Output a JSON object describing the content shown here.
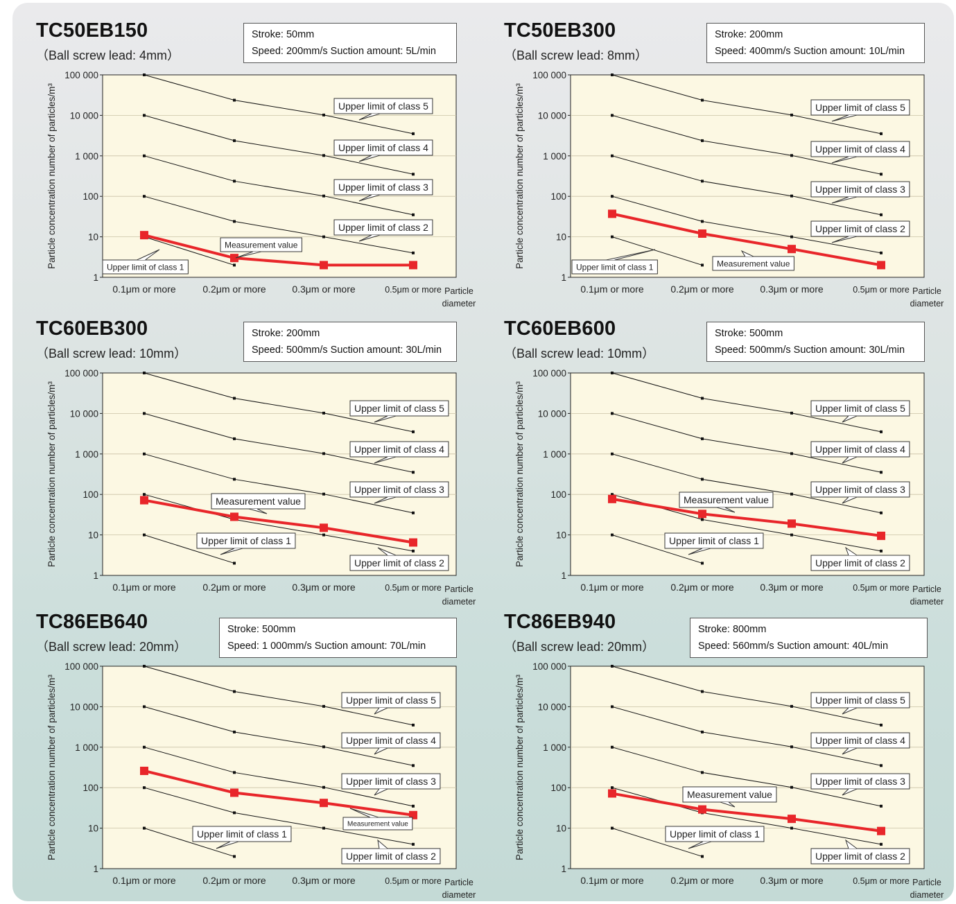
{
  "chart_data": [
    {
      "type": "line",
      "model": "TC50EB150",
      "lead_label": "（Ball screw lead: 4mm）",
      "spec_lines": [
        "Stroke: 50mm",
        "Speed: 200mm/s  Suction amount: 5L/min"
      ],
      "ylabel": "Particle concentration number of particles/m³",
      "xlabel": "Particle diameter",
      "yscale": "log",
      "ylim": [
        1,
        100000
      ],
      "y_ticks": [
        "1",
        "10",
        "100",
        "1 000",
        "10 000",
        "100 000"
      ],
      "categories": [
        "0.1μm or more",
        "0.2μm or more",
        "0.3μm or more",
        "0.5μm or more"
      ],
      "class_limits": [
        {
          "name": "Upper limit of class 1",
          "values": [
            10,
            2,
            null,
            null
          ]
        },
        {
          "name": "Upper limit of class 2",
          "values": [
            100,
            24,
            10,
            4
          ]
        },
        {
          "name": "Upper limit of class 3",
          "values": [
            1000,
            237,
            102,
            35
          ]
        },
        {
          "name": "Upper limit of class 4",
          "values": [
            10000,
            2370,
            1020,
            352
          ]
        },
        {
          "name": "Upper limit of class 5",
          "values": [
            100000,
            23700,
            10200,
            3520
          ]
        }
      ],
      "measurement": {
        "name": "Measurement value",
        "values": [
          11,
          3,
          2,
          2
        ]
      }
    },
    {
      "type": "line",
      "model": "TC50EB300",
      "lead_label": "（Ball screw lead: 8mm）",
      "spec_lines": [
        "Stroke: 200mm",
        "Speed: 400mm/s  Suction amount: 10L/min"
      ],
      "ylabel": "Particle concentration number of particles/m³",
      "xlabel": "Particle diameter",
      "yscale": "log",
      "ylim": [
        1,
        100000
      ],
      "y_ticks": [
        "1",
        "10",
        "100",
        "1 000",
        "10 000",
        "100 000"
      ],
      "categories": [
        "0.1μm or more",
        "0.2μm or more",
        "0.3μm or more",
        "0.5μm or more"
      ],
      "class_limits": [
        {
          "name": "Upper limit of class 1",
          "values": [
            10,
            2,
            null,
            null
          ]
        },
        {
          "name": "Upper limit of class 2",
          "values": [
            100,
            24,
            10,
            4
          ]
        },
        {
          "name": "Upper limit of class 3",
          "values": [
            1000,
            237,
            102,
            35
          ]
        },
        {
          "name": "Upper limit of class 4",
          "values": [
            10000,
            2370,
            1020,
            352
          ]
        },
        {
          "name": "Upper limit of class 5",
          "values": [
            100000,
            23700,
            10200,
            3520
          ]
        }
      ],
      "measurement": {
        "name": "Measurement value",
        "values": [
          37,
          12,
          5,
          2
        ]
      }
    },
    {
      "type": "line",
      "model": "TC60EB300",
      "lead_label": "（Ball screw lead: 10mm）",
      "spec_lines": [
        "Stroke: 200mm",
        "Speed: 500mm/s  Suction amount: 30L/min"
      ],
      "ylabel": "Particle concentration number of particles/m³",
      "xlabel": "Particle diameter",
      "yscale": "log",
      "ylim": [
        1,
        100000
      ],
      "y_ticks": [
        "1",
        "10",
        "100",
        "1 000",
        "10 000",
        "100 000"
      ],
      "categories": [
        "0.1μm or more",
        "0.2μm or more",
        "0.3μm or more",
        "0.5μm or more"
      ],
      "class_limits": [
        {
          "name": "Upper limit of class 1",
          "values": [
            10,
            2,
            null,
            null
          ]
        },
        {
          "name": "Upper limit of class 2",
          "values": [
            100,
            24,
            10,
            4
          ]
        },
        {
          "name": "Upper limit of class 3",
          "values": [
            1000,
            237,
            102,
            35
          ]
        },
        {
          "name": "Upper limit of class 4",
          "values": [
            10000,
            2370,
            1020,
            352
          ]
        },
        {
          "name": "Upper limit of class 5",
          "values": [
            100000,
            23700,
            10200,
            3520
          ]
        }
      ],
      "measurement": {
        "name": "Measurement value",
        "values": [
          72,
          28,
          15,
          6.5
        ]
      }
    },
    {
      "type": "line",
      "model": "TC60EB600",
      "lead_label": "（Ball screw lead: 10mm）",
      "spec_lines": [
        "Stroke: 500mm",
        "Speed: 500mm/s  Suction amount: 30L/min"
      ],
      "ylabel": "Particle concentration number of particles/m³",
      "xlabel": "Particle diameter",
      "yscale": "log",
      "ylim": [
        1,
        100000
      ],
      "y_ticks": [
        "1",
        "10",
        "100",
        "1 000",
        "10 000",
        "100 000"
      ],
      "categories": [
        "0.1μm or more",
        "0.2μm or more",
        "0.3μm or more",
        "0.5μm or more"
      ],
      "class_limits": [
        {
          "name": "Upper limit of class 1",
          "values": [
            10,
            2,
            null,
            null
          ]
        },
        {
          "name": "Upper limit of class 2",
          "values": [
            100,
            24,
            10,
            4
          ]
        },
        {
          "name": "Upper limit of class 3",
          "values": [
            1000,
            237,
            102,
            35
          ]
        },
        {
          "name": "Upper limit of class 4",
          "values": [
            10000,
            2370,
            1020,
            352
          ]
        },
        {
          "name": "Upper limit of class 5",
          "values": [
            100000,
            23700,
            10200,
            3520
          ]
        }
      ],
      "measurement": {
        "name": "Measurement value",
        "values": [
          77,
          33,
          19,
          9.5
        ]
      }
    },
    {
      "type": "line",
      "model": "TC86EB640",
      "lead_label": "（Ball screw lead: 20mm）",
      "spec_lines": [
        "Stroke:    500mm",
        "Speed: 1 000mm/s  Suction amount: 70L/min"
      ],
      "ylabel": "Particle concentration number of particles/m³",
      "xlabel": "Particle diameter",
      "yscale": "log",
      "ylim": [
        1,
        100000
      ],
      "y_ticks": [
        "1",
        "10",
        "100",
        "1 000",
        "10 000",
        "100 000"
      ],
      "categories": [
        "0.1μm or more",
        "0.2μm or more",
        "0.3μm or more",
        "0.5μm or more"
      ],
      "class_limits": [
        {
          "name": "Upper limit of class 1",
          "values": [
            10,
            2,
            null,
            null
          ]
        },
        {
          "name": "Upper limit of class 2",
          "values": [
            100,
            24,
            10,
            4
          ]
        },
        {
          "name": "Upper limit of class 3",
          "values": [
            1000,
            237,
            102,
            35
          ]
        },
        {
          "name": "Upper limit of class 4",
          "values": [
            10000,
            2370,
            1020,
            352
          ]
        },
        {
          "name": "Upper limit of class 5",
          "values": [
            100000,
            23700,
            10200,
            3520
          ]
        }
      ],
      "measurement": {
        "name": "Measurement value",
        "values": [
          260,
          75,
          42,
          21
        ]
      }
    },
    {
      "type": "line",
      "model": "TC86EB940",
      "lead_label": "（Ball screw lead: 20mm）",
      "spec_lines": [
        "Stroke: 800mm",
        "Speed: 560mm/s  Suction amount: 40L/min"
      ],
      "ylabel": "Particle concentration number of particles/m³",
      "xlabel": "Particle diameter",
      "yscale": "log",
      "ylim": [
        1,
        100000
      ],
      "y_ticks": [
        "1",
        "10",
        "100",
        "1 000",
        "10 000",
        "100 000"
      ],
      "categories": [
        "0.1μm or more",
        "0.2μm or more",
        "0.3μm or more",
        "0.5μm or more"
      ],
      "class_limits": [
        {
          "name": "Upper limit of class 1",
          "values": [
            10,
            2,
            null,
            null
          ]
        },
        {
          "name": "Upper limit of class 2",
          "values": [
            100,
            24,
            10,
            4
          ]
        },
        {
          "name": "Upper limit of class 3",
          "values": [
            1000,
            237,
            102,
            35
          ]
        },
        {
          "name": "Upper limit of class 4",
          "values": [
            10000,
            2370,
            1020,
            352
          ]
        },
        {
          "name": "Upper limit of class 5",
          "values": [
            100000,
            23700,
            10200,
            3520
          ]
        }
      ],
      "measurement": {
        "name": "Measurement value",
        "values": [
          72,
          29,
          17,
          8.5
        ]
      }
    }
  ],
  "colors": {
    "measurement": "#e8262a",
    "class_line": "#111111",
    "plot_background": "#fcf8e3"
  }
}
